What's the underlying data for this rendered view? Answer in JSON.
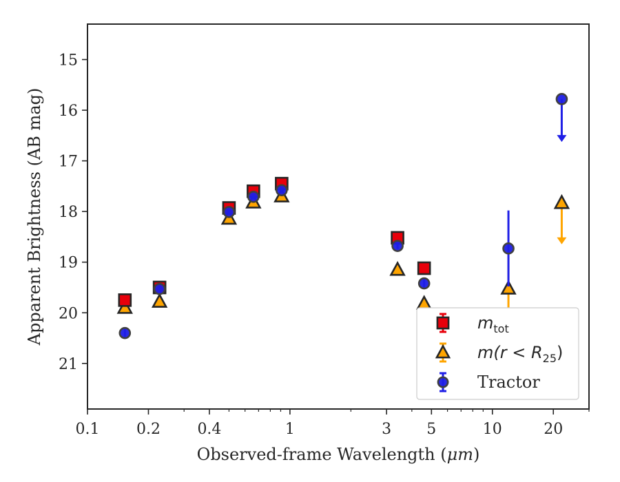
{
  "chart_data": {
    "type": "scatter",
    "xlabel_prefix": "Observed-frame Wavelength (",
    "xlabel_unit": "μm",
    "xlabel_suffix": ")",
    "ylabel": "Apparent Brightness (AB mag)",
    "xscale": "log",
    "xlim": [
      0.1,
      30
    ],
    "ylim": [
      21.9,
      14.3
    ],
    "y_inverted": true,
    "xticks": [
      0.1,
      0.2,
      0.4,
      1,
      3,
      5,
      10,
      20
    ],
    "xtick_labels": [
      "0.1",
      "0.2",
      "0.4",
      "1",
      "3",
      "5",
      "10",
      "20"
    ],
    "yticks": [
      15,
      16,
      17,
      18,
      19,
      20,
      21
    ],
    "ytick_labels": [
      "15",
      "16",
      "17",
      "18",
      "19",
      "20",
      "21"
    ],
    "grid": false,
    "legend_position": "lower-right",
    "series": [
      {
        "name": "m_tot",
        "legend_main": "m",
        "legend_sub": "tot",
        "legend_rest": "",
        "marker": "square",
        "color": "#e8000b",
        "points": [
          {
            "x": 0.153,
            "y": 19.75,
            "err": 0.05
          },
          {
            "x": 0.227,
            "y": 19.5,
            "err": 0.05
          },
          {
            "x": 0.5,
            "y": 17.93,
            "err": 0.04
          },
          {
            "x": 0.66,
            "y": 17.6,
            "err": 0.04
          },
          {
            "x": 0.91,
            "y": 17.45,
            "err": 0.04
          },
          {
            "x": 3.4,
            "y": 18.52,
            "err": 0.05
          },
          {
            "x": 4.6,
            "y": 19.12,
            "err": 0.06
          }
        ]
      },
      {
        "name": "m(r < R25)",
        "legend_main": "m",
        "legend_sub": "25",
        "legend_rest": "(r < R",
        "legend_close": ")",
        "marker": "triangle",
        "color": "#ffa500",
        "points": [
          {
            "x": 0.153,
            "y": 19.9,
            "err": 0.05
          },
          {
            "x": 0.227,
            "y": 19.78,
            "err": 0.05
          },
          {
            "x": 0.5,
            "y": 18.14,
            "err": 0.05
          },
          {
            "x": 0.66,
            "y": 17.82,
            "err": 0.04
          },
          {
            "x": 0.91,
            "y": 17.7,
            "err": 0.04
          },
          {
            "x": 3.4,
            "y": 19.15,
            "err": 0.06
          },
          {
            "x": 4.6,
            "y": 19.82,
            "err": 0.08
          },
          {
            "x": 12.0,
            "y": 19.52,
            "err": 0.75
          },
          {
            "x": 22.0,
            "y": 17.83,
            "upper_limit": true,
            "limit_to": 18.62
          }
        ]
      },
      {
        "name": "Tractor",
        "legend_main": "Tractor",
        "marker": "circle",
        "color": "#1f1fe6",
        "points": [
          {
            "x": 0.153,
            "y": 20.4,
            "err": 0.08
          },
          {
            "x": 0.227,
            "y": 19.53,
            "err": 0.06
          },
          {
            "x": 0.5,
            "y": 18.01,
            "err": 0.05
          },
          {
            "x": 0.66,
            "y": 17.71,
            "err": 0.05
          },
          {
            "x": 0.91,
            "y": 17.58,
            "err": 0.05
          },
          {
            "x": 3.4,
            "y": 18.68,
            "err": 0.06
          },
          {
            "x": 4.6,
            "y": 19.42,
            "err": 0.08
          },
          {
            "x": 12.0,
            "y": 18.73,
            "err": 0.75
          },
          {
            "x": 22.0,
            "y": 15.78,
            "upper_limit": true,
            "limit_to": 16.6
          }
        ]
      }
    ]
  }
}
